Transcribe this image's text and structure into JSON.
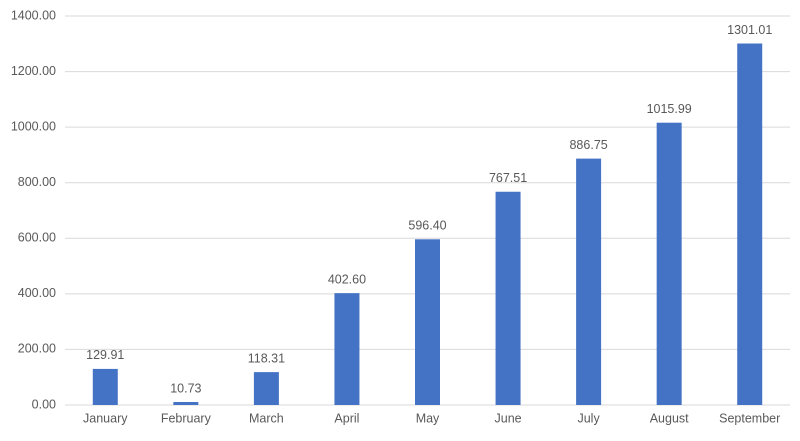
{
  "chart_data": {
    "type": "bar",
    "categories": [
      "January",
      "February",
      "March",
      "April",
      "May",
      "June",
      "July",
      "August",
      "September"
    ],
    "values": [
      129.91,
      10.73,
      118.31,
      402.6,
      596.4,
      767.51,
      886.75,
      1015.99,
      1301.01
    ],
    "value_labels": [
      "129.91",
      "10.73",
      "118.31",
      "402.60",
      "596.40",
      "767.51",
      "886.75",
      "1015.99",
      "1301.01"
    ],
    "color": "#4472c4",
    "ylim": [
      0,
      1400
    ],
    "yticks": [
      {
        "value": 0,
        "label": "0.00"
      },
      {
        "value": 200,
        "label": "200.00"
      },
      {
        "value": 400,
        "label": "400.00"
      },
      {
        "value": 600,
        "label": "600.00"
      },
      {
        "value": 800,
        "label": "800.00"
      },
      {
        "value": 1000,
        "label": "1000.00"
      },
      {
        "value": 1200,
        "label": "1200.00"
      },
      {
        "value": 1400,
        "label": "1400.00"
      }
    ],
    "grid": true
  }
}
